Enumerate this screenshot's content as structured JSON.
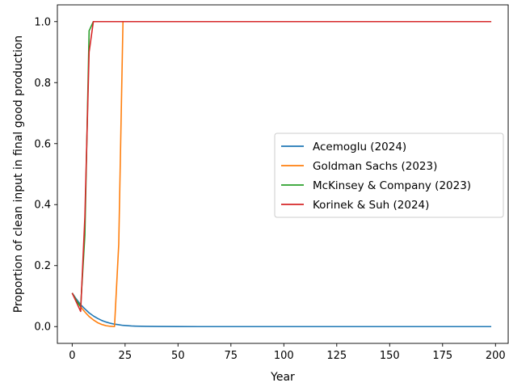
{
  "chart_data": {
    "type": "line",
    "title": "",
    "xlabel": "Year",
    "ylabel": "Proportion of clean input in final good production",
    "xlim": [
      -7,
      206
    ],
    "ylim": [
      -0.055,
      1.055
    ],
    "xticks": [
      0,
      25,
      50,
      75,
      100,
      125,
      150,
      175,
      200
    ],
    "yticks": [
      0.0,
      0.2,
      0.4,
      0.6,
      0.8,
      1.0
    ],
    "xtick_labels": [
      "0",
      "25",
      "50",
      "75",
      "100",
      "125",
      "150",
      "175",
      "200"
    ],
    "ytick_labels": [
      "0.0",
      "0.2",
      "0.4",
      "0.6",
      "0.8",
      "1.0"
    ],
    "grid": false,
    "legend_position": "center-right",
    "series": [
      {
        "name": "Acemoglu (2024)",
        "color": "#1f77b4",
        "x": [
          0,
          2,
          4,
          6,
          8,
          10,
          12,
          14,
          16,
          18,
          20,
          22,
          24,
          26,
          28,
          30,
          35,
          40,
          50,
          60,
          80,
          100,
          120,
          140,
          160,
          180,
          198
        ],
        "y": [
          0.11,
          0.09,
          0.072,
          0.058,
          0.045,
          0.035,
          0.027,
          0.02,
          0.015,
          0.011,
          0.008,
          0.006,
          0.004,
          0.003,
          0.002,
          0.0015,
          0.0008,
          0.0004,
          0.0001,
          0.0,
          0.0,
          0.0,
          0.0,
          0.0,
          0.0,
          0.0,
          0.0
        ]
      },
      {
        "name": "Goldman Sachs (2023)",
        "color": "#ff7f0e",
        "x": [
          0,
          2,
          4,
          6,
          8,
          10,
          12,
          14,
          16,
          18,
          20,
          22,
          24,
          26,
          30,
          40,
          60,
          80,
          100,
          120,
          140,
          160,
          180,
          198
        ],
        "y": [
          0.11,
          0.085,
          0.065,
          0.048,
          0.033,
          0.022,
          0.013,
          0.007,
          0.003,
          0.001,
          0.0,
          0.27,
          1.0,
          1.0,
          1.0,
          1.0,
          1.0,
          1.0,
          1.0,
          1.0,
          1.0,
          1.0,
          1.0,
          1.0
        ]
      },
      {
        "name": "McKinsey & Company (2023)",
        "color": "#2ca02c",
        "x": [
          0,
          2,
          4,
          6,
          8,
          10,
          12,
          20,
          40,
          60,
          80,
          100,
          120,
          140,
          160,
          180,
          198
        ],
        "y": [
          0.11,
          0.085,
          0.065,
          0.3,
          0.97,
          1.0,
          1.0,
          1.0,
          1.0,
          1.0,
          1.0,
          1.0,
          1.0,
          1.0,
          1.0,
          1.0,
          1.0
        ]
      },
      {
        "name": "Korinek & Suh (2024)",
        "color": "#d62728",
        "x": [
          0,
          2,
          4,
          6,
          8,
          10,
          12,
          20,
          40,
          60,
          80,
          100,
          120,
          140,
          160,
          180,
          198
        ],
        "y": [
          0.11,
          0.08,
          0.05,
          0.36,
          0.9,
          1.0,
          1.0,
          1.0,
          1.0,
          1.0,
          1.0,
          1.0,
          1.0,
          1.0,
          1.0,
          1.0,
          1.0
        ]
      }
    ]
  }
}
